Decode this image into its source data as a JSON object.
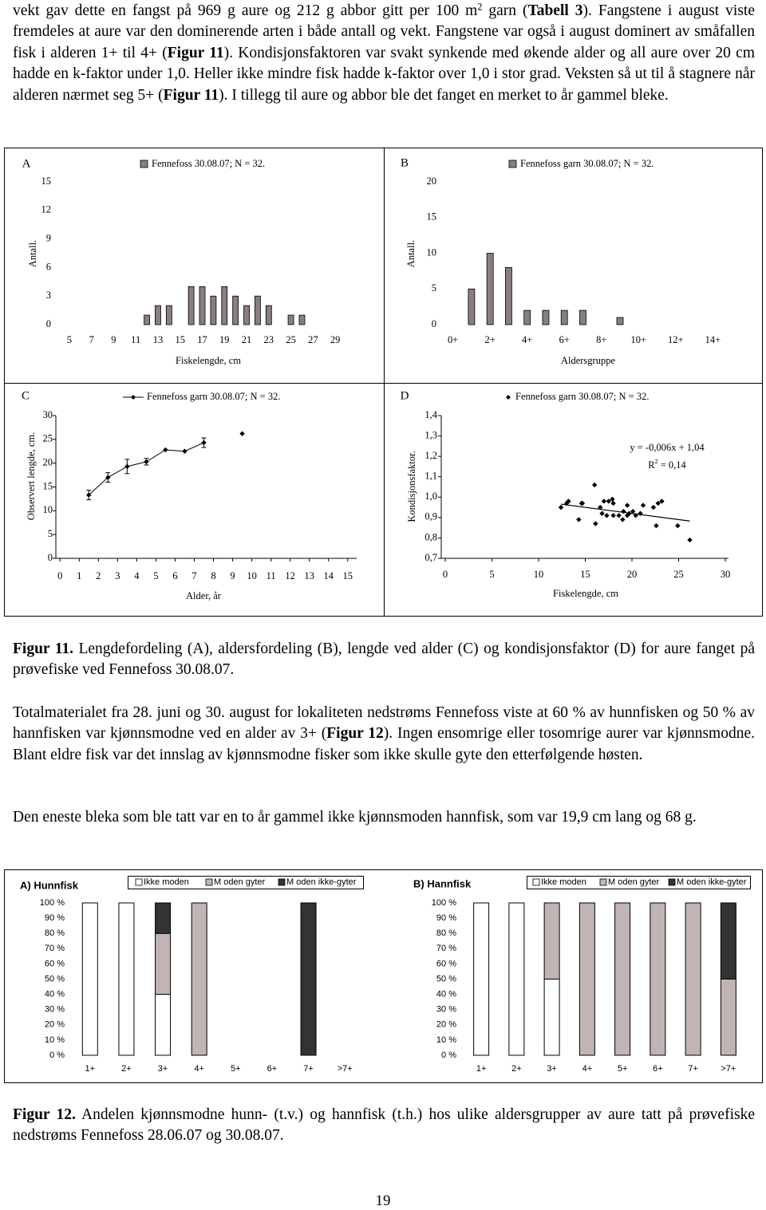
{
  "paragraphs": [
    [
      "vekt gav dette en fangst på 969 g aure og 212 g abbor gitt per 100 m",
      {
        "text": "2",
        "style": "sup"
      },
      " garn (",
      {
        "text": "Tabell 3",
        "style": "bold"
      },
      "). Fangstene i august viste fremdeles at aure var den dominerende arten i både antall og vekt. Fangstene var også i august dominert av småfallen fisk i alderen 1+ til 4+ (",
      {
        "text": "Figur 11",
        "style": "bold"
      },
      "). Kondisjonsfaktoren var svakt synkende med økende alder og all aure over 20 cm hadde en k-faktor under 1,0. Heller ikke mindre fisk hadde k-faktor over 1,0 i stor grad. Veksten så ut til å stagnere når alderen nærmet seg 5+ (",
      {
        "text": "Figur 11",
        "style": "bold"
      },
      "). I tillegg til aure og abbor ble det fanget en merket to år gammel bleke."
    ],
    [
      "Totalmaterialet fra 28. juni og 30. august for lokaliteten nedstrøms Fennefoss viste at 60 % av hunnfisken og 50 % av hannfisken var kjønnsmodne ved en alder av 3+ (",
      {
        "text": "Figur 12",
        "style": "bold"
      },
      "). Ingen ensomrige eller tosomrige aurer var kjønnsmodne. Blant eldre fisk var det innslag av kjønnsmodne fisker som ikke skulle gyte den etterfølgende høsten."
    ],
    [
      "Den eneste bleka som ble tatt var en to år gammel ikke kjønnsmoden hannfisk, som var 19,9 cm lang og 68 g."
    ]
  ],
  "figure_11_caption": [
    {
      "text": "Figur 11.",
      "style": "bold"
    },
    " Lengdefordeling (A), aldersfordeling (B), lengde ved alder (C) og kondisjonsfaktor (D) for aure fanget på prøvefiske ved Fennefoss 30.08.07."
  ],
  "figure_12_caption": [
    {
      "text": "Figur 12.",
      "style": "bold"
    },
    " Andelen kjønnsmodne hunn- (t.v.) og hannfisk (t.h.) hos ulike aldersgrupper av aure tatt på prøvefiske nedstrøms Fennefoss 28.06.07 og 30.08.07."
  ],
  "page_number": "19",
  "chart_data": [
    {
      "type": "bar",
      "label": "A",
      "x": [
        12,
        13,
        14,
        16,
        17,
        18,
        19,
        20,
        21,
        22,
        23,
        25,
        26
      ],
      "series": [
        {
          "name": "Fennefoss 30.08.07; N =  32.",
          "color": "#8a7e7e",
          "values": [
            1,
            2,
            2,
            4,
            4,
            3,
            4,
            3,
            2,
            3,
            2,
            1,
            1
          ]
        }
      ],
      "xlim": [
        4,
        30
      ],
      "xticks": [
        5,
        7,
        9,
        11,
        13,
        15,
        17,
        19,
        21,
        23,
        25,
        27,
        29
      ],
      "ylim": [
        0,
        15
      ],
      "yticks": [
        0,
        3,
        6,
        9,
        12,
        15
      ],
      "xlabel": "Fiskelengde, cm",
      "ylabel": "Antall."
    },
    {
      "type": "bar",
      "label": "B",
      "categories": [
        "0+",
        null,
        "2+",
        null,
        "4+",
        null,
        "6+",
        null,
        "8+",
        null,
        "10+",
        null,
        "12+",
        null,
        "14+"
      ],
      "series": [
        {
          "name": "Fennefoss garn 30.08.07; N =  32.",
          "color": "#8a7e7e",
          "values": [
            0,
            5,
            10,
            8,
            2,
            2,
            2,
            2,
            0,
            1,
            0,
            0,
            0,
            0,
            0
          ]
        }
      ],
      "ylim": [
        0,
        20
      ],
      "yticks": [
        0,
        5,
        10,
        15,
        20
      ],
      "xlabel": "Aldersgruppe",
      "ylabel": "Antall."
    },
    {
      "type": "line",
      "label": "C",
      "x": [
        1.5,
        2.5,
        3.5,
        4.5,
        5.5,
        6.5,
        7.5,
        8.5,
        9.5
      ],
      "series": [
        {
          "name": "Fennefoss garn 30.08.07; N =  32.",
          "color": "#000000",
          "values": [
            13.3,
            17,
            19.3,
            20.3,
            22.8,
            22.5,
            24.3,
            null,
            26.2
          ],
          "errors": [
            1,
            1,
            1.5,
            0.7,
            null,
            null,
            1,
            null,
            null
          ]
        }
      ],
      "xlim": [
        -0.3,
        15.3
      ],
      "xticks": [
        0,
        1,
        2,
        3,
        4,
        5,
        6,
        7,
        8,
        9,
        10,
        11,
        12,
        13,
        14,
        15
      ],
      "ylim": [
        0,
        30
      ],
      "yticks": [
        0,
        5,
        10,
        15,
        20,
        25,
        30
      ],
      "xlabel": "Alder, år",
      "ylabel": "Observert lengde, cm."
    },
    {
      "type": "scatter",
      "label": "D",
      "x": [
        12.4,
        13.0,
        13.2,
        14.3,
        14.6,
        16.0,
        16.1,
        16.6,
        17.0,
        17.3,
        17.5,
        17.9,
        18.0,
        18.6,
        19.0,
        19.1,
        19.5,
        19.7,
        20.1,
        20.4,
        20.9,
        21.2,
        22.3,
        22.6,
        22.8,
        23.2,
        24.9,
        26.2,
        16.8,
        19.5,
        18.0,
        14.7
      ],
      "series": [
        {
          "name": "Fennefoss garn 30.08.07; N =  32.",
          "color": "#000000",
          "values": [
            0.95,
            0.97,
            0.98,
            0.89,
            0.97,
            1.06,
            0.87,
            0.95,
            0.98,
            0.91,
            0.98,
            0.99,
            0.91,
            0.91,
            0.89,
            0.93,
            0.96,
            0.92,
            0.93,
            0.91,
            0.92,
            0.96,
            0.95,
            0.86,
            0.97,
            0.98,
            0.86,
            0.79,
            0.92,
            0.91,
            0.97,
            0.97
          ]
        }
      ],
      "trendline": {
        "slope": -0.006,
        "intercept": 1.04,
        "equation": "y = -0,006x + 1,04",
        "r2": [
          "R",
          "2",
          " = 0,14"
        ]
      },
      "xlim": [
        0,
        30
      ],
      "xticks": [
        0,
        5,
        10,
        15,
        20,
        25,
        30
      ],
      "ylim": [
        0.7,
        1.4
      ],
      "yticks": [
        {
          "value": 0.7,
          "label": "0,7"
        },
        {
          "value": 0.8,
          "label": "0,8"
        },
        {
          "value": 0.9,
          "label": "0,9"
        },
        {
          "value": 1.0,
          "label": "1,0"
        },
        {
          "value": 1.1,
          "label": "1,1"
        },
        {
          "value": 1.2,
          "label": "1,2"
        },
        {
          "value": 1.3,
          "label": "1,3"
        },
        {
          "value": 1.4,
          "label": "1,4"
        }
      ],
      "xlabel": "Fiskelengde, cm",
      "ylabel": "Kondisjonsfaktor."
    },
    {
      "type": "stacked_bar",
      "title": "A) Hunnfisk",
      "categories": [
        "1+",
        "2+",
        "3+",
        "4+",
        "5+",
        "6+",
        "7+",
        ">7+"
      ],
      "series": [
        {
          "name": "Ikke moden",
          "color": "#ffffff",
          "values": [
            100,
            100,
            40,
            0,
            0,
            0,
            0,
            0
          ]
        },
        {
          "name": "M oden gyter",
          "color": "#c0b4b4",
          "values": [
            0,
            0,
            40,
            100,
            0,
            0,
            0,
            0
          ]
        },
        {
          "name": "M oden ikke-gyter",
          "color": "#333333",
          "values": [
            0,
            0,
            20,
            0,
            0,
            0,
            100,
            0
          ]
        }
      ],
      "ylim": [
        0,
        100
      ],
      "yticks": [
        {
          "value": 0,
          "label": "0 %"
        },
        {
          "value": 10,
          "label": "10 %"
        },
        {
          "value": 20,
          "label": "20 %"
        },
        {
          "value": 30,
          "label": "30 %"
        },
        {
          "value": 40,
          "label": "40 %"
        },
        {
          "value": 50,
          "label": "50 %"
        },
        {
          "value": 60,
          "label": "60 %"
        },
        {
          "value": 70,
          "label": "70 %"
        },
        {
          "value": 80,
          "label": "80 %"
        },
        {
          "value": 90,
          "label": "90 %"
        },
        {
          "value": 100,
          "label": "100 %"
        }
      ]
    },
    {
      "type": "stacked_bar",
      "title": "B) Hannfisk",
      "categories": [
        "1+",
        "2+",
        "3+",
        "4+",
        "5+",
        "6+",
        "7+",
        ">7+"
      ],
      "series": [
        {
          "name": "Ikke moden",
          "color": "#ffffff",
          "values": [
            100,
            100,
            50,
            0,
            0,
            0,
            0,
            0
          ]
        },
        {
          "name": "M oden gyter",
          "color": "#c0b4b4",
          "values": [
            0,
            0,
            50,
            100,
            100,
            100,
            100,
            50
          ]
        },
        {
          "name": "M oden ikke-gyter",
          "color": "#333333",
          "values": [
            0,
            0,
            0,
            0,
            0,
            0,
            0,
            50
          ]
        }
      ],
      "ylim": [
        0,
        100
      ],
      "yticks": [
        {
          "value": 0,
          "label": "0 %"
        },
        {
          "value": 10,
          "label": "10 %"
        },
        {
          "value": 20,
          "label": "20 %"
        },
        {
          "value": 30,
          "label": "30 %"
        },
        {
          "value": 40,
          "label": "40 %"
        },
        {
          "value": 50,
          "label": "50 %"
        },
        {
          "value": 60,
          "label": "60 %"
        },
        {
          "value": 70,
          "label": "70 %"
        },
        {
          "value": 80,
          "label": "80 %"
        },
        {
          "value": 90,
          "label": "90 %"
        },
        {
          "value": 100,
          "label": "100 %"
        }
      ]
    }
  ]
}
